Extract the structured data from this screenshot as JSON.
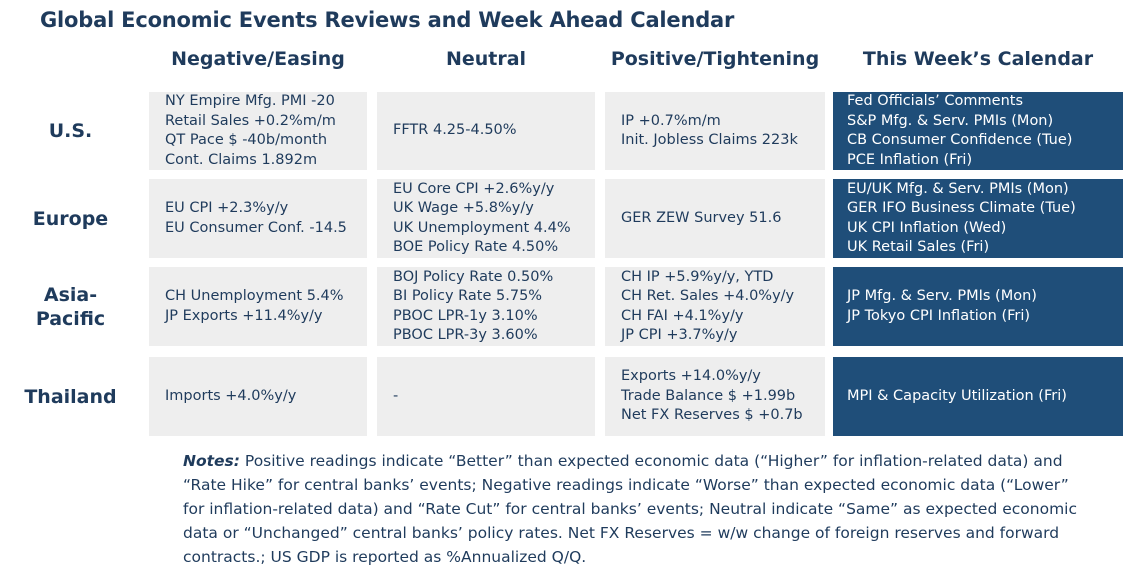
{
  "title": "Global Economic Events Reviews and Week Ahead Calendar",
  "columns": [
    "Negative/Easing",
    "Neutral",
    "Positive/Tightening",
    "This Week’s Calendar"
  ],
  "rows": [
    {
      "label": "U.S.",
      "negative": [
        "NY Empire Mfg. PMI -20",
        "Retail Sales +0.2%m/m",
        "QT Pace $ -40b/month",
        "Cont. Claims 1.892m"
      ],
      "neutral": [
        "FFTR 4.25-4.50%"
      ],
      "positive": [
        "IP +0.7%m/m",
        "Init. Jobless Claims 223k"
      ],
      "calendar": [
        "Fed Officials’ Comments",
        "S&P Mfg. & Serv. PMIs (Mon)",
        "CB Consumer Confidence (Tue)",
        "PCE Inflation (Fri)"
      ]
    },
    {
      "label": "Europe",
      "negative": [
        "EU CPI +2.3%y/y",
        "EU Consumer Conf. -14.5"
      ],
      "neutral": [
        "EU Core CPI +2.6%y/y",
        "UK Wage +5.8%y/y",
        "UK Unemployment 4.4%",
        "BOE Policy Rate 4.50%"
      ],
      "positive": [
        "GER ZEW Survey 51.6"
      ],
      "calendar": [
        "EU/UK Mfg. & Serv. PMIs (Mon)",
        "GER IFO Business Climate (Tue)",
        "UK CPI Inflation (Wed)",
        "UK Retail Sales (Fri)"
      ]
    },
    {
      "label": "Asia-Pacific",
      "label_lines": [
        "Asia-",
        "Pacific"
      ],
      "negative": [
        "CH Unemployment 5.4%",
        "JP Exports +11.4%y/y"
      ],
      "neutral": [
        "BOJ Policy Rate 0.50%",
        "BI Policy Rate 5.75%",
        "PBOC LPR-1y 3.10%",
        "PBOC LPR-3y 3.60%"
      ],
      "positive": [
        "CH IP +5.9%y/y, YTD",
        "CH Ret. Sales +4.0%y/y",
        "CH FAI +4.1%y/y",
        "JP CPI +3.7%y/y"
      ],
      "calendar": [
        "JP Mfg. & Serv. PMIs (Mon)",
        "JP Tokyo CPI Inflation (Fri)"
      ]
    },
    {
      "label": "Thailand",
      "negative": [
        "Imports +4.0%y/y"
      ],
      "neutral": [
        "-"
      ],
      "positive": [
        "Exports +14.0%y/y",
        "Trade Balance $ +1.99b",
        "Net FX Reserves $ +0.7b"
      ],
      "calendar": [
        "MPI & Capacity Utilization (Fri)"
      ]
    }
  ],
  "notes": {
    "label": "Notes:",
    "text": " Positive readings indicate “Better” than expected economic data (“Higher” for inflation-related data) and “Rate Hike” for central banks’ events; Negative readings indicate “Worse” than expected economic data (“Lower” for inflation-related data) and “Rate Cut” for central banks’ events; Neutral indicate “Same” as expected economic data or “Unchanged” central banks’ policy rates. Net FX Reserves = w/w change of foreign reserves and forward contracts.; US GDP is reported as %Annualized Q/Q."
  },
  "colors": {
    "heading": "#1f3b5c",
    "cell_bg": "#eeeeee",
    "calendar_bg": "#1f4e79",
    "calendar_text": "#ffffff"
  }
}
